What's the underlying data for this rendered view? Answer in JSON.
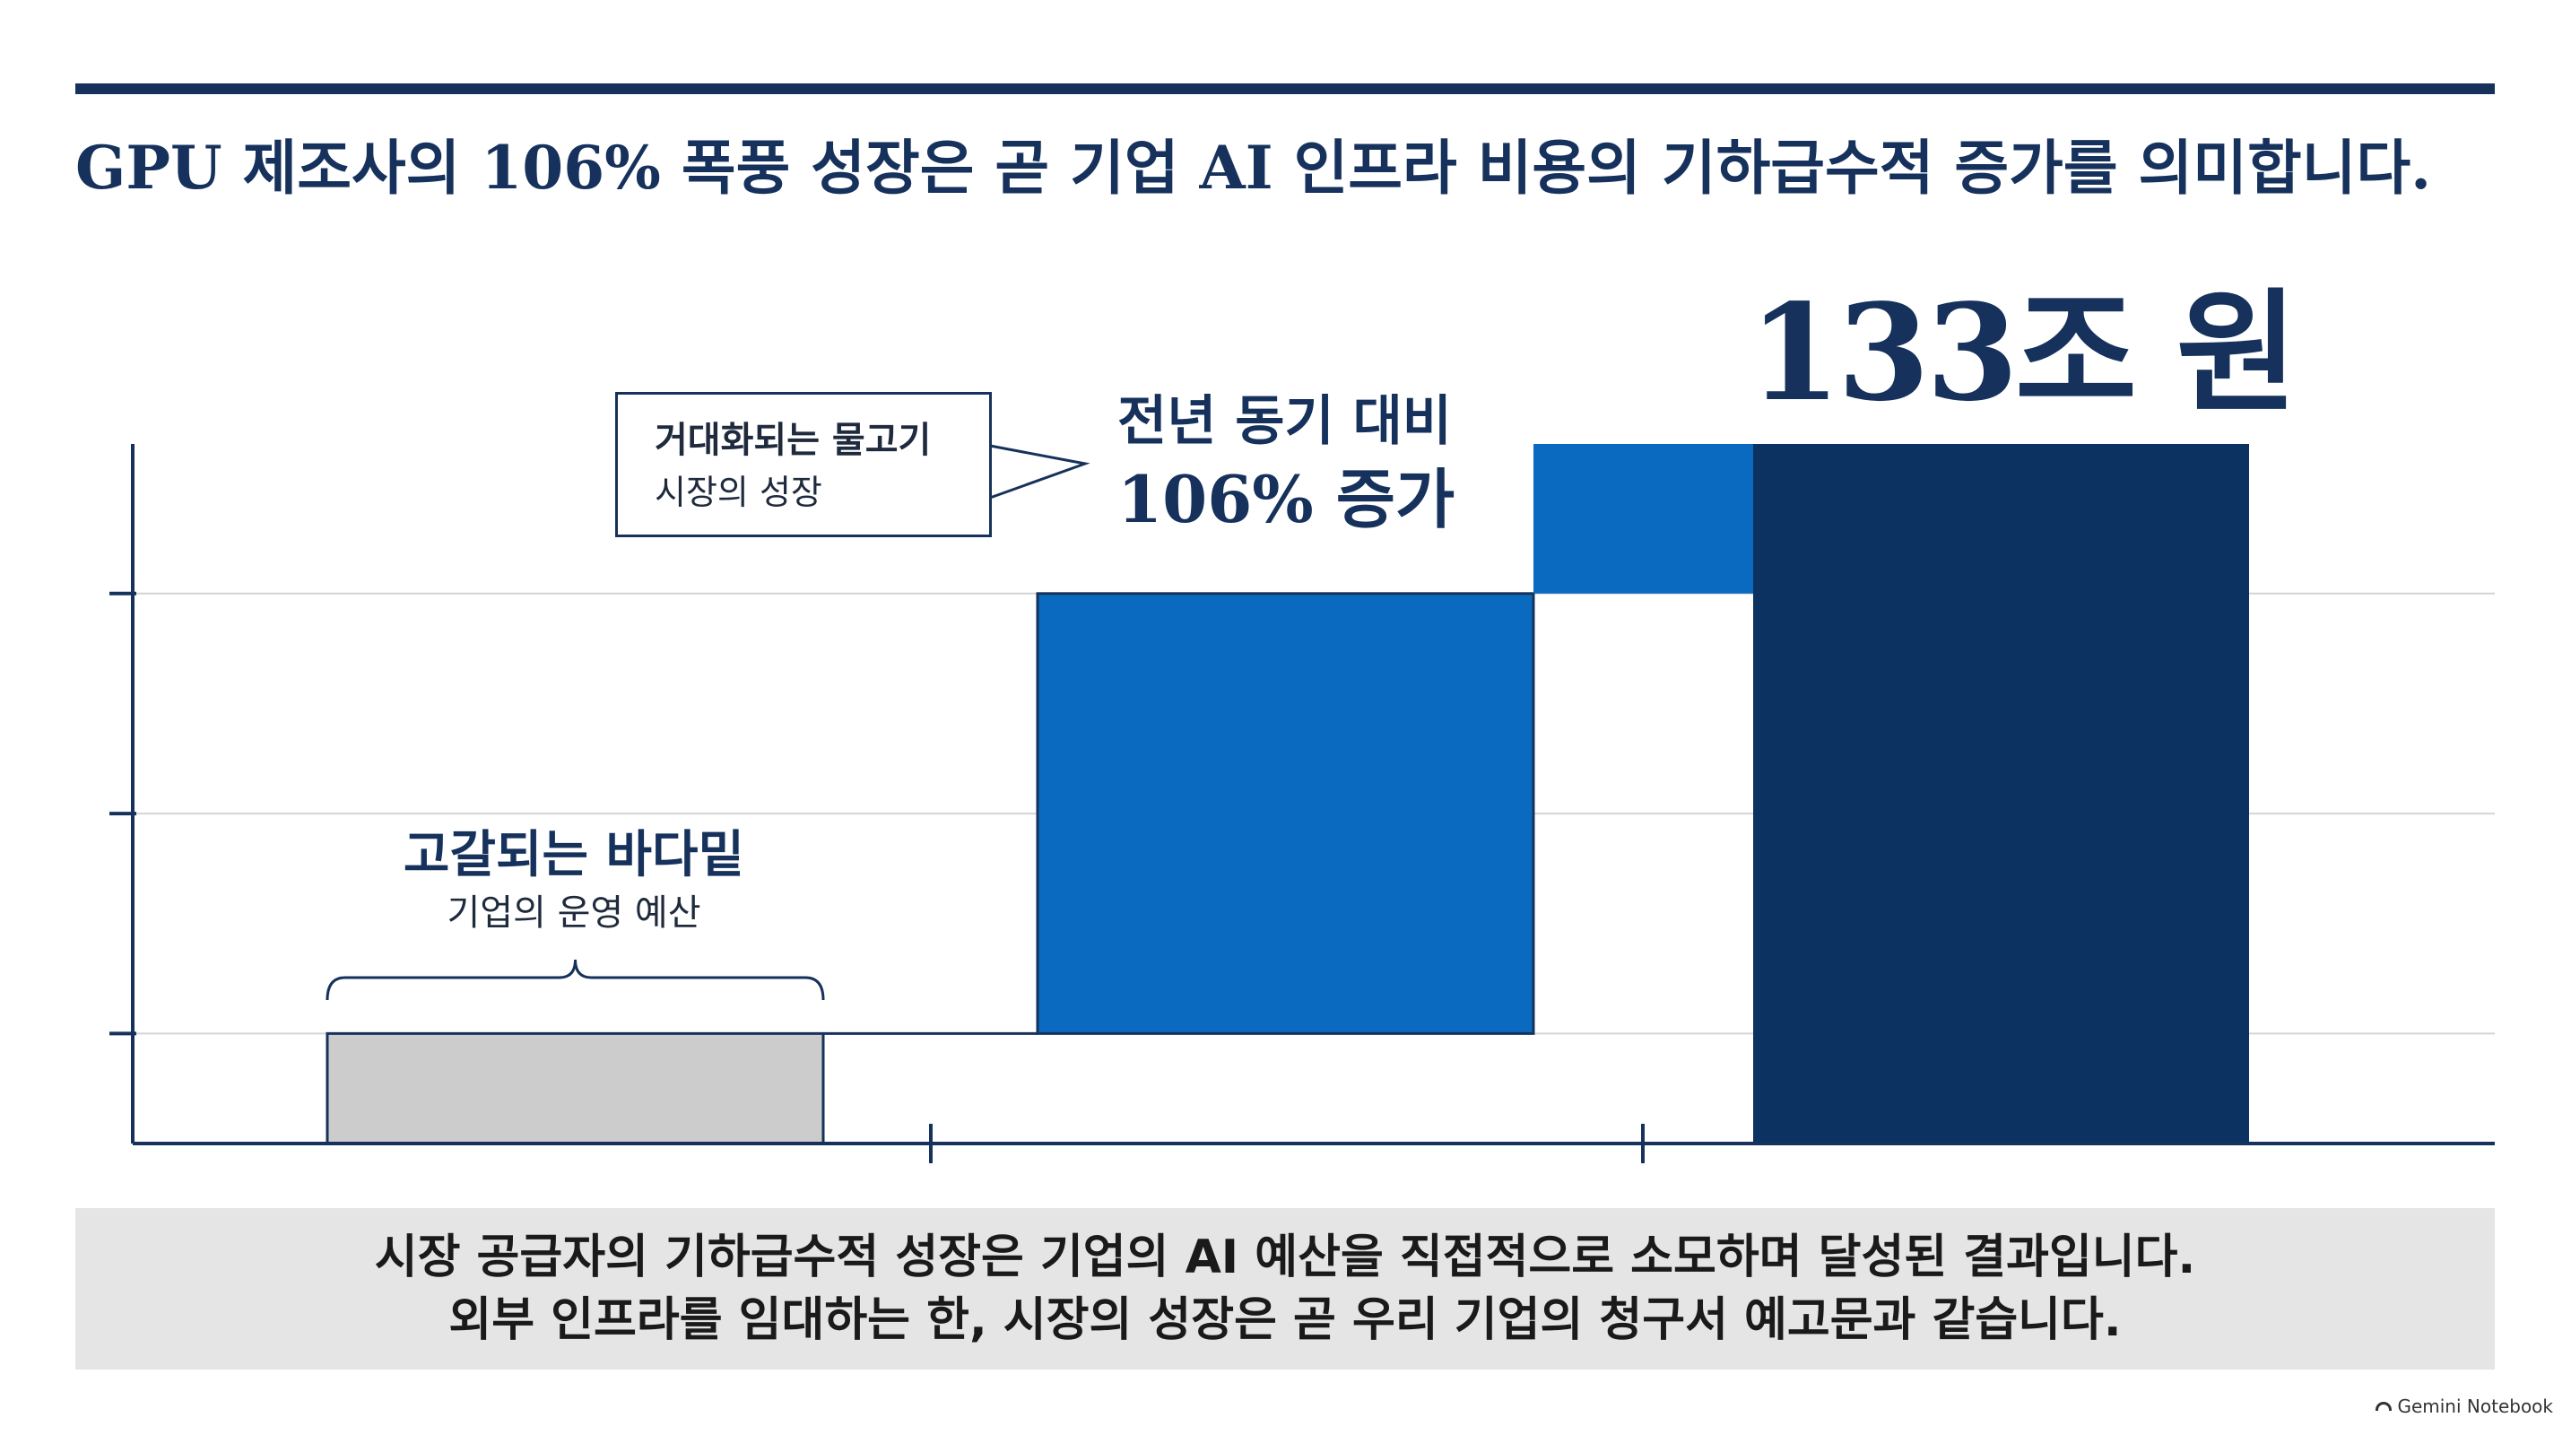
{
  "headline": "GPU 제조사의 106% 폭풍 성장은 곧 기업 AI 인프라 비용의 기하급수적 증가를 의미합니다.",
  "callout": {
    "title": "거대화되는 물고기",
    "subtitle": "시장의 성장"
  },
  "growth": {
    "label": "전년 동기 대비",
    "value": "106% 증가"
  },
  "total": "133조 원",
  "small_bar": {
    "title": "고갈되는 바다밑",
    "subtitle": "기업의 운영 예산"
  },
  "footer": {
    "line1": "시장 공급자의 기하급수적 성장은 기업의 AI 예산을 직접적으로 소모하며 달성된 결과입니다.",
    "line2": "외부 인프라를 임대하는 한, 시장의 성장은 곧 우리 기업의 청구서 예고문과 같습니다."
  },
  "watermark": "Gemini Notebook",
  "colors": {
    "navy": "#16325c",
    "blue": "#0a6ac0",
    "gray": "#cccccc",
    "dark_bar": "#0b3260"
  },
  "chart_data": {
    "type": "bar",
    "style": "waterfall",
    "categories": [
      "",
      "",
      ""
    ],
    "series": [
      {
        "role": "base",
        "values": [
          25,
          0,
          0
        ],
        "color": "#cccccc"
      },
      {
        "role": "increase",
        "ranges": [
          [
            null,
            null
          ],
          [
            25,
            125
          ],
          [
            125,
            159
          ]
        ],
        "color": "#0a6ac0"
      },
      {
        "role": "total",
        "values": [
          0,
          0,
          159
        ],
        "color": "#0b3260"
      }
    ],
    "ylim": [
      0,
      159
    ],
    "grid_levels": [
      25,
      75,
      125
    ],
    "grid": true,
    "annotations": [
      "거대화되는 물고기",
      "시장의 성장",
      "전년 동기 대비",
      "106% 증가",
      "133조 원",
      "고갈되는 바다밑",
      "기업의 운영 예산"
    ]
  }
}
